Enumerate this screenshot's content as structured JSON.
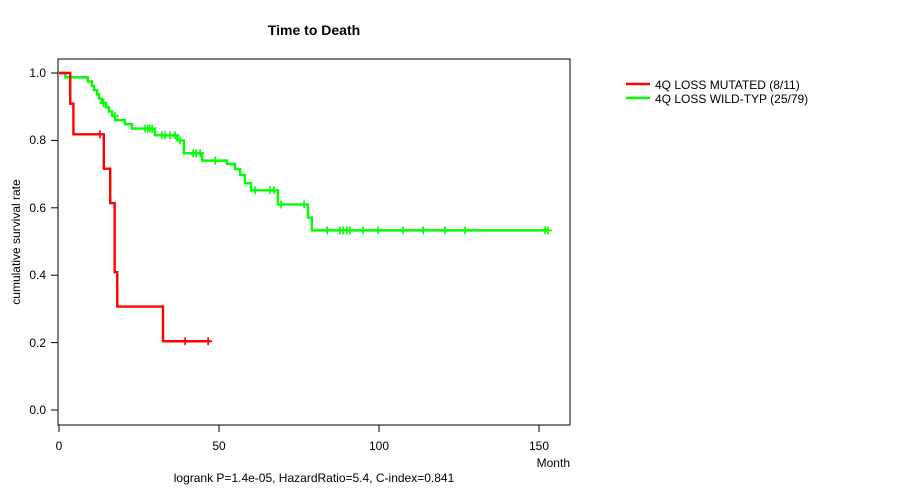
{
  "figure": {
    "title": "Time to Death",
    "x_axis": {
      "label": "Month",
      "ticks": [
        "0",
        "50",
        "100",
        "150"
      ],
      "tick_values": [
        0,
        50,
        100,
        150
      ]
    },
    "y_axis": {
      "label": "cumulative survival rate",
      "ticks": [
        "0.0",
        "0.2",
        "0.4",
        "0.6",
        "0.8",
        "1.0"
      ],
      "tick_values": [
        0,
        0.2,
        0.4,
        0.6,
        0.8,
        1.0
      ]
    },
    "annotation": "logrank P=1.4e-05, HazardRatio=5.4, C-index=0.841",
    "legend": [
      {
        "label": "4Q LOSS MUTATED (8/11)",
        "color": "#ff0000"
      },
      {
        "label": "4Q LOSS WILD-TYP (25/79)",
        "color": "#00ff00"
      }
    ]
  },
  "chart_data": {
    "type": "line",
    "subtype": "kaplan-meier-step",
    "title": "Time to Death",
    "xlabel": "Month",
    "ylabel": "cumulative survival rate",
    "xlim": [
      0,
      160
    ],
    "ylim": [
      0.0,
      1.0
    ],
    "grid": false,
    "legend_position": "right-outside",
    "series": [
      {
        "name": "4Q LOSS MUTATED (8/11)",
        "color": "#ff0000",
        "events_total": "8/11",
        "steps": [
          [
            0,
            1.0
          ],
          [
            3.5,
            0.909
          ],
          [
            4.5,
            0.818
          ],
          [
            14,
            0.716
          ],
          [
            16,
            0.614
          ],
          [
            17.4,
            0.409
          ],
          [
            18.2,
            0.307
          ],
          [
            32.5,
            0.204
          ]
        ],
        "censors": [
          [
            12.8,
            0.818
          ],
          [
            39.4,
            0.204
          ],
          [
            46.6,
            0.204
          ]
        ],
        "end_time": 47.2
      },
      {
        "name": "4Q LOSS WILD-TYP (25/79)",
        "color": "#00ff00",
        "events_total": "25/79",
        "steps": [
          [
            0,
            1.0
          ],
          [
            2,
            0.987
          ],
          [
            9,
            0.975
          ],
          [
            10.3,
            0.962
          ],
          [
            10.9,
            0.949
          ],
          [
            11.9,
            0.937
          ],
          [
            12.5,
            0.924
          ],
          [
            13.4,
            0.911
          ],
          [
            14.7,
            0.899
          ],
          [
            15.6,
            0.886
          ],
          [
            16.6,
            0.873
          ],
          [
            17.5,
            0.86
          ],
          [
            20.6,
            0.848
          ],
          [
            22.8,
            0.835
          ],
          [
            30,
            0.815
          ],
          [
            37,
            0.8
          ],
          [
            39,
            0.762
          ],
          [
            44.7,
            0.74
          ],
          [
            52.5,
            0.73
          ],
          [
            55,
            0.715
          ],
          [
            56.6,
            0.697
          ],
          [
            58.1,
            0.673
          ],
          [
            60,
            0.652
          ],
          [
            68.4,
            0.61
          ],
          [
            77.8,
            0.571
          ],
          [
            79,
            0.533
          ]
        ],
        "censors": [
          [
            13.9,
            0.911
          ],
          [
            17.5,
            0.873
          ],
          [
            26.9,
            0.835
          ],
          [
            27.8,
            0.835
          ],
          [
            28.4,
            0.835
          ],
          [
            29.1,
            0.835
          ],
          [
            32.2,
            0.815
          ],
          [
            33.1,
            0.815
          ],
          [
            34.7,
            0.815
          ],
          [
            36.3,
            0.815
          ],
          [
            37.8,
            0.8
          ],
          [
            41.9,
            0.762
          ],
          [
            42.8,
            0.762
          ],
          [
            44.1,
            0.762
          ],
          [
            48.8,
            0.74
          ],
          [
            61.3,
            0.652
          ],
          [
            65.9,
            0.652
          ],
          [
            67.2,
            0.652
          ],
          [
            69.4,
            0.61
          ],
          [
            76.6,
            0.61
          ],
          [
            83.8,
            0.533
          ],
          [
            87.8,
            0.533
          ],
          [
            88.8,
            0.533
          ],
          [
            90.0,
            0.533
          ],
          [
            90.9,
            0.533
          ],
          [
            95.0,
            0.533
          ],
          [
            99.7,
            0.533
          ],
          [
            107.5,
            0.533
          ],
          [
            113.8,
            0.533
          ],
          [
            120.6,
            0.533
          ],
          [
            126.9,
            0.533
          ],
          [
            151.9,
            0.533
          ],
          [
            152.8,
            0.533
          ]
        ],
        "end_time": 153
      }
    ]
  }
}
